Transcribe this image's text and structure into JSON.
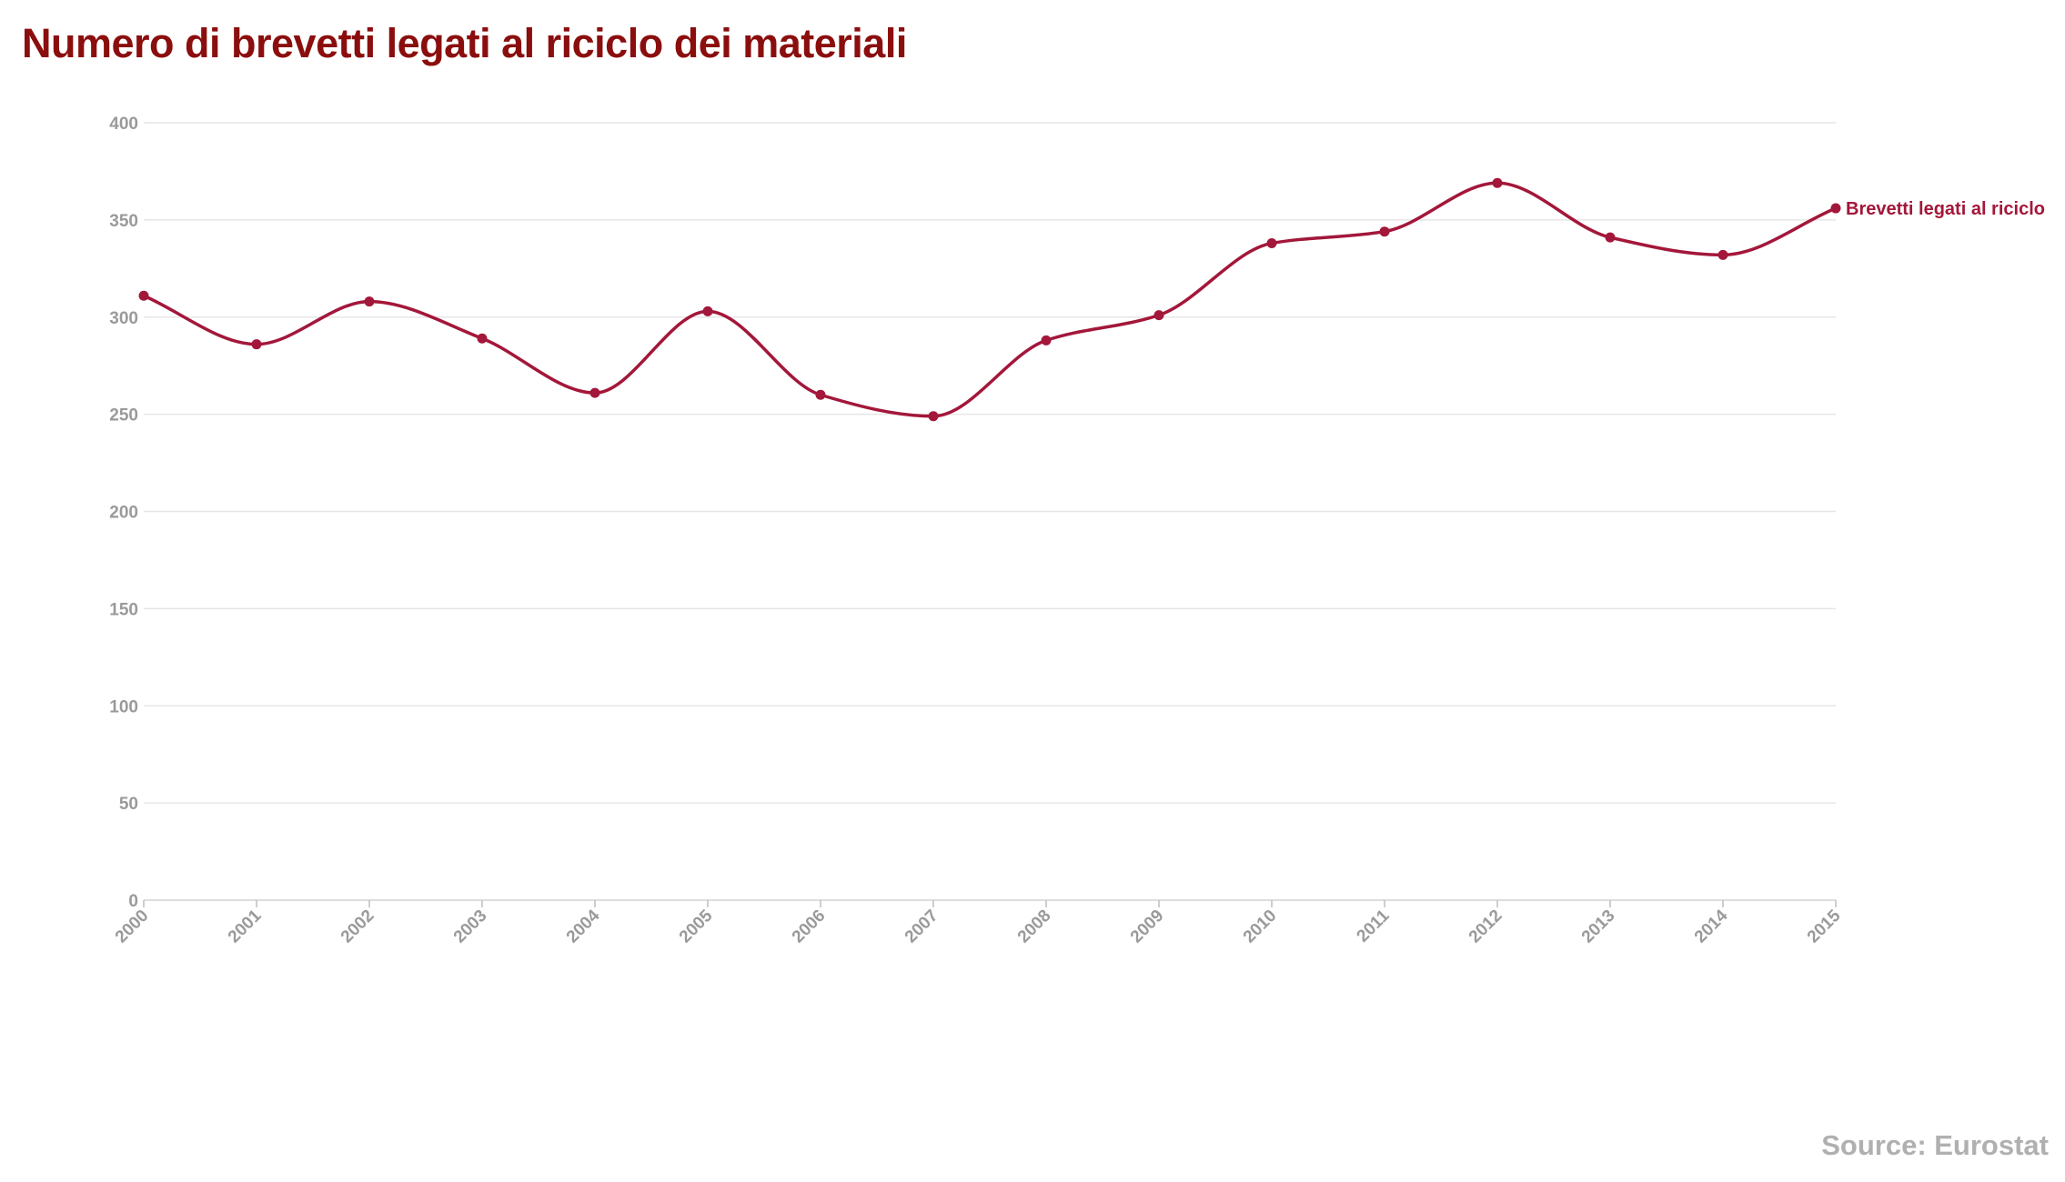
{
  "title": "Numero di brevetti legati al riciclo dei materiali",
  "source": "Source: Eurostat",
  "colors": {
    "title": "#8b0e0e",
    "series": "#a3173a",
    "grid": "#e6e6e6",
    "tick_text": "#9a9a9a",
    "source": "#b0b0b0"
  },
  "chart_data": {
    "type": "line",
    "x": [
      "2000",
      "2001",
      "2002",
      "2003",
      "2004",
      "2005",
      "2006",
      "2007",
      "2008",
      "2009",
      "2010",
      "2011",
      "2012",
      "2013",
      "2014",
      "2015"
    ],
    "series": [
      {
        "name": "Brevetti legati al riciclo",
        "values": [
          311,
          286,
          308,
          289,
          261,
          303,
          260,
          249,
          288,
          301,
          338,
          344,
          369,
          341,
          332,
          356
        ]
      }
    ],
    "y_ticks": [
      0,
      50,
      100,
      150,
      200,
      250,
      300,
      350,
      400
    ],
    "ylim": [
      0,
      400
    ],
    "xlabel": "",
    "ylabel": "",
    "grid": true,
    "curve": "smooth",
    "markers": true,
    "legend": "inline label at end of line"
  }
}
